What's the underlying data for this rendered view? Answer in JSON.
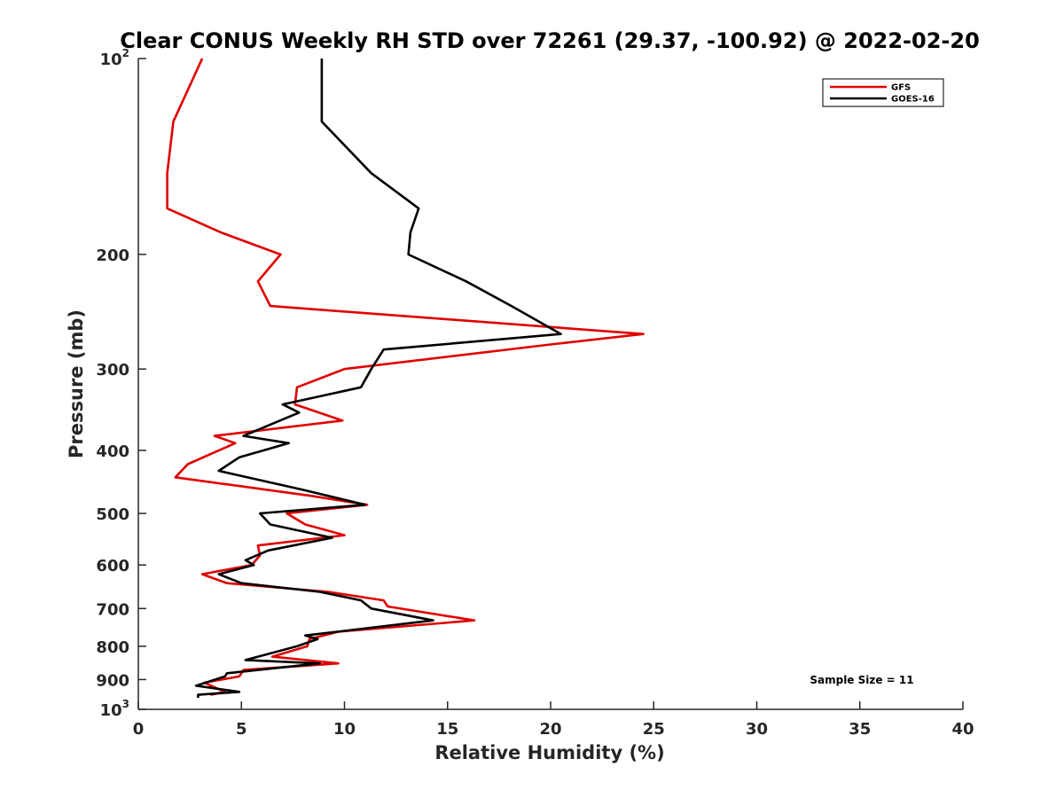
{
  "chart_data": {
    "type": "line",
    "title": "Clear CONUS Weekly RH STD over 72261 (29.37, -100.92) @ 2022-02-20",
    "xlabel": "Relative Humidity (%)",
    "ylabel": "Pressure (mb)",
    "xlim": [
      0,
      40
    ],
    "ylim": [
      100,
      1000
    ],
    "y_scale": "log",
    "y_reversed": true,
    "x_ticks": [
      0,
      5,
      10,
      15,
      20,
      25,
      30,
      35,
      40
    ],
    "x_tick_labels": [
      "0",
      "5",
      "10",
      "15",
      "20",
      "25",
      "30",
      "35",
      "40"
    ],
    "y_ticks": [
      100,
      200,
      300,
      400,
      500,
      600,
      700,
      800,
      900,
      1000
    ],
    "y_tick_labels": [
      {
        "base": "10",
        "sup": "2"
      },
      {
        "base": "200",
        "sup": ""
      },
      {
        "base": "300",
        "sup": ""
      },
      {
        "base": "400",
        "sup": ""
      },
      {
        "base": "500",
        "sup": ""
      },
      {
        "base": "600",
        "sup": ""
      },
      {
        "base": "700",
        "sup": ""
      },
      {
        "base": "800",
        "sup": ""
      },
      {
        "base": "900",
        "sup": ""
      },
      {
        "base": "10",
        "sup": "3"
      }
    ],
    "grid": false,
    "legend_position": "top-right",
    "annotation": "Sample Size = 11",
    "series": [
      {
        "name": "GFS",
        "color": "#e00000",
        "points": [
          [
            3.1,
            100
          ],
          [
            1.7,
            125
          ],
          [
            1.4,
            150
          ],
          [
            1.4,
            170
          ],
          [
            4.0,
            185
          ],
          [
            6.9,
            200
          ],
          [
            5.8,
            220
          ],
          [
            6.4,
            240
          ],
          [
            24.5,
            265
          ],
          [
            20.0,
            275
          ],
          [
            10.0,
            300
          ],
          [
            7.7,
            320
          ],
          [
            7.6,
            340
          ],
          [
            9.9,
            360
          ],
          [
            3.7,
            380
          ],
          [
            4.7,
            390
          ],
          [
            2.4,
            420
          ],
          [
            1.8,
            440
          ],
          [
            8.4,
            470
          ],
          [
            11.1,
            485
          ],
          [
            7.2,
            500
          ],
          [
            8.1,
            520
          ],
          [
            10.0,
            540
          ],
          [
            5.8,
            560
          ],
          [
            5.9,
            580
          ],
          [
            5.5,
            600
          ],
          [
            3.1,
            620
          ],
          [
            4.3,
            640
          ],
          [
            9.2,
            660
          ],
          [
            11.9,
            680
          ],
          [
            12.1,
            695
          ],
          [
            16.3,
            730
          ],
          [
            9.7,
            760
          ],
          [
            8.3,
            780
          ],
          [
            8.2,
            800
          ],
          [
            6.5,
            830
          ],
          [
            9.7,
            850
          ],
          [
            5.1,
            870
          ],
          [
            4.9,
            890
          ],
          [
            3.2,
            910
          ],
          [
            4.2,
            940
          ],
          [
            3.5,
            950
          ]
        ]
      },
      {
        "name": "GOES-16",
        "color": "#000000",
        "points": [
          [
            8.9,
            100
          ],
          [
            8.9,
            125
          ],
          [
            11.3,
            150
          ],
          [
            13.6,
            170
          ],
          [
            13.2,
            185
          ],
          [
            13.1,
            200
          ],
          [
            15.9,
            220
          ],
          [
            18.1,
            240
          ],
          [
            20.5,
            265
          ],
          [
            11.9,
            280
          ],
          [
            11.3,
            300
          ],
          [
            10.8,
            320
          ],
          [
            7.0,
            340
          ],
          [
            7.8,
            350
          ],
          [
            5.1,
            380
          ],
          [
            7.3,
            390
          ],
          [
            4.9,
            410
          ],
          [
            3.9,
            430
          ],
          [
            8.0,
            460
          ],
          [
            11.0,
            485
          ],
          [
            5.9,
            500
          ],
          [
            6.4,
            520
          ],
          [
            9.4,
            545
          ],
          [
            6.3,
            570
          ],
          [
            5.2,
            590
          ],
          [
            5.6,
            600
          ],
          [
            3.9,
            620
          ],
          [
            5.0,
            640
          ],
          [
            8.8,
            660
          ],
          [
            10.8,
            680
          ],
          [
            11.3,
            700
          ],
          [
            14.3,
            730
          ],
          [
            8.1,
            770
          ],
          [
            8.7,
            780
          ],
          [
            7.7,
            800
          ],
          [
            5.2,
            840
          ],
          [
            8.8,
            850
          ],
          [
            4.3,
            880
          ],
          [
            4.2,
            890
          ],
          [
            2.8,
            920
          ],
          [
            4.9,
            940
          ],
          [
            2.9,
            950
          ],
          [
            2.9,
            960
          ]
        ]
      }
    ]
  }
}
